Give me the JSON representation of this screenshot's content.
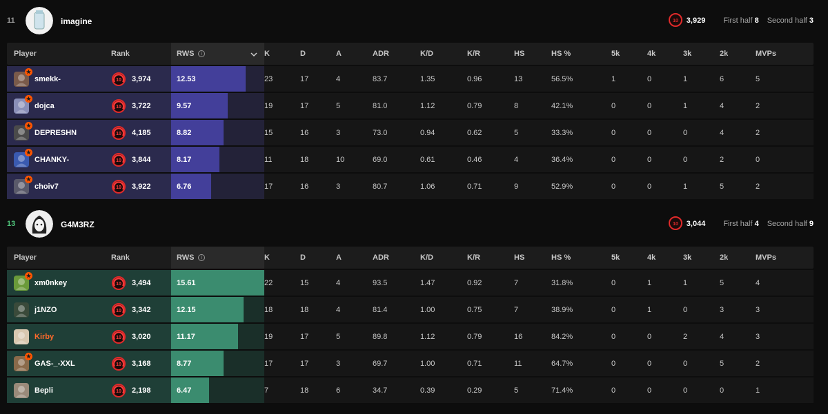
{
  "colors": {
    "team1_row": "#2b2a4d",
    "team1_bar": "#433f9a",
    "team2_row": "#1f3f37",
    "team2_bar": "#3b8c6f",
    "accent_orange": "#ff5500",
    "win_green": "#4fc47a"
  },
  "headers": {
    "player": "Player",
    "rank": "Rank",
    "rws": "RWS",
    "k": "K",
    "d": "D",
    "a": "A",
    "adr": "ADR",
    "kd": "K/D",
    "kr": "K/R",
    "hs": "HS",
    "hs_pct": "HS %",
    "k5": "5k",
    "k4": "4k",
    "k3": "3k",
    "k2": "2k",
    "mvps": "MVPs"
  },
  "teams": [
    {
      "score": "11",
      "name": "imagine",
      "elo": "3,929",
      "elo_level": "10",
      "first_half_label": "First half",
      "first_half": "8",
      "second_half_label": "Second half",
      "second_half": "3",
      "players": [
        {
          "name": "smekk-",
          "level": "10",
          "elo": "3,974",
          "rws": "12.53",
          "rws_fraction": 0.8,
          "k": "23",
          "d": "17",
          "a": "4",
          "adr": "83.7",
          "kd": "1.35",
          "kr": "0.96",
          "hs": "13",
          "hs_pct": "56.5%",
          "k5": "1",
          "k4": "0",
          "k3": "1",
          "k2": "6",
          "mvps": "5",
          "star": true,
          "avatar": "#7a5a4a"
        },
        {
          "name": "dojca",
          "level": "10",
          "elo": "3,722",
          "rws": "9.57",
          "rws_fraction": 0.61,
          "k": "19",
          "d": "17",
          "a": "5",
          "adr": "81.0",
          "kd": "1.12",
          "kr": "0.79",
          "hs": "8",
          "hs_pct": "42.1%",
          "k5": "0",
          "k4": "0",
          "k3": "1",
          "k2": "4",
          "mvps": "2",
          "star": true,
          "avatar": "#8a8fb8"
        },
        {
          "name": "DEPRESHN",
          "level": "10",
          "elo": "4,185",
          "rws": "8.82",
          "rws_fraction": 0.56,
          "k": "15",
          "d": "16",
          "a": "3",
          "adr": "73.0",
          "kd": "0.94",
          "kr": "0.62",
          "hs": "5",
          "hs_pct": "33.3%",
          "k5": "0",
          "k4": "0",
          "k3": "0",
          "k2": "4",
          "mvps": "2",
          "star": true,
          "avatar": "#4a4a4a"
        },
        {
          "name": "CHANKY-",
          "level": "10",
          "elo": "3,844",
          "rws": "8.17",
          "rws_fraction": 0.52,
          "k": "11",
          "d": "18",
          "a": "10",
          "adr": "69.0",
          "kd": "0.61",
          "kr": "0.46",
          "hs": "4",
          "hs_pct": "36.4%",
          "k5": "0",
          "k4": "0",
          "k3": "0",
          "k2": "2",
          "mvps": "0",
          "star": true,
          "avatar": "#3a5ab0"
        },
        {
          "name": "choiv7",
          "level": "10",
          "elo": "3,922",
          "rws": "6.76",
          "rws_fraction": 0.43,
          "k": "17",
          "d": "16",
          "a": "3",
          "adr": "80.7",
          "kd": "1.06",
          "kr": "0.71",
          "hs": "9",
          "hs_pct": "52.9%",
          "k5": "0",
          "k4": "0",
          "k3": "1",
          "k2": "5",
          "mvps": "2",
          "star": true,
          "avatar": "#5a5a6a"
        }
      ]
    },
    {
      "score": "13",
      "name": "G4M3RZ",
      "elo": "3,044",
      "elo_level": "10",
      "first_half_label": "First half",
      "first_half": "4",
      "second_half_label": "Second half",
      "second_half": "9",
      "players": [
        {
          "name": "xm0nkey",
          "level": "10",
          "elo": "3,494",
          "rws": "15.61",
          "rws_fraction": 1.0,
          "k": "22",
          "d": "15",
          "a": "4",
          "adr": "93.5",
          "kd": "1.47",
          "kr": "0.92",
          "hs": "7",
          "hs_pct": "31.8%",
          "k5": "0",
          "k4": "1",
          "k3": "1",
          "k2": "5",
          "mvps": "4",
          "star": true,
          "avatar": "#6a9a3a"
        },
        {
          "name": "j1NZO",
          "level": "10",
          "elo": "3,342",
          "rws": "12.15",
          "rws_fraction": 0.78,
          "k": "18",
          "d": "18",
          "a": "4",
          "adr": "81.4",
          "kd": "1.00",
          "kr": "0.75",
          "hs": "7",
          "hs_pct": "38.9%",
          "k5": "0",
          "k4": "1",
          "k3": "0",
          "k2": "3",
          "mvps": "3",
          "star": false,
          "avatar": "#3a4a3a"
        },
        {
          "name": "Kirby",
          "level": "10",
          "elo": "3,020",
          "rws": "11.17",
          "rws_fraction": 0.72,
          "k": "19",
          "d": "17",
          "a": "5",
          "adr": "89.8",
          "kd": "1.12",
          "kr": "0.79",
          "hs": "16",
          "hs_pct": "84.2%",
          "k5": "0",
          "k4": "0",
          "k3": "2",
          "k2": "4",
          "mvps": "3",
          "star": false,
          "avatar": "#d8c8b0",
          "name_orange": true
        },
        {
          "name": "GAS-_-XXL",
          "level": "10",
          "elo": "3,168",
          "rws": "8.77",
          "rws_fraction": 0.56,
          "k": "17",
          "d": "17",
          "a": "3",
          "adr": "69.7",
          "kd": "1.00",
          "kr": "0.71",
          "hs": "11",
          "hs_pct": "64.7%",
          "k5": "0",
          "k4": "0",
          "k3": "0",
          "k2": "5",
          "mvps": "2",
          "star": true,
          "avatar": "#8a6a4a"
        },
        {
          "name": "Bepli",
          "level": "10",
          "elo": "2,198",
          "rws": "6.47",
          "rws_fraction": 0.41,
          "k": "7",
          "d": "18",
          "a": "6",
          "adr": "34.7",
          "kd": "0.39",
          "kr": "0.29",
          "hs": "5",
          "hs_pct": "71.4%",
          "k5": "0",
          "k4": "0",
          "k3": "0",
          "k2": "0",
          "mvps": "1",
          "star": false,
          "avatar": "#9a8a7a"
        }
      ]
    }
  ]
}
